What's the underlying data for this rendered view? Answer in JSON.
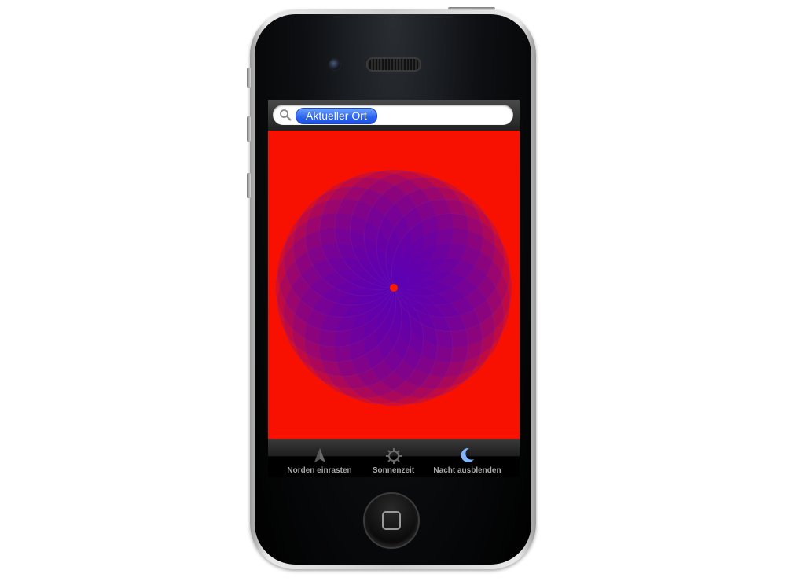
{
  "search": {
    "token_label": "Aktueller Ort"
  },
  "tabbar": {
    "items": [
      {
        "label": "Norden einrasten",
        "icon": "north-arrow-icon"
      },
      {
        "label": "Sonnenzeit",
        "icon": "sun-gear-icon"
      },
      {
        "label": "Nacht ausblenden",
        "icon": "moon-icon"
      }
    ]
  },
  "colors": {
    "background": "#f81100",
    "disc": "#4b00c8",
    "center_dot": "#ff1a00",
    "active_icon": "#7fb6ff"
  }
}
